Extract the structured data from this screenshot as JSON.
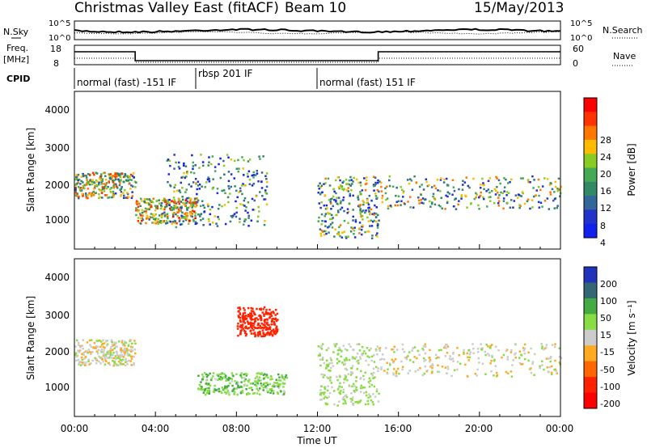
{
  "header": {
    "title": "Christmas Valley East (fitACF)",
    "beam": "Beam 10",
    "date": "15/May/2013"
  },
  "noise_panel": {
    "left_label": "N.Sky",
    "right_label": "N.Search",
    "left_ticks": [
      "10^5",
      "10^0"
    ],
    "right_ticks": [
      "10^5",
      "10^0"
    ]
  },
  "freq_panel": {
    "left_label_line1": "Freq.",
    "left_label_line2": "[MHz]",
    "right_label": "Nave",
    "left_ticks": [
      "18",
      "8"
    ],
    "right_ticks": [
      "60",
      "0"
    ]
  },
  "cpid_panel": {
    "label": "CPID",
    "segments": [
      {
        "label": "normal (fast) -151 IF",
        "start_hour": 0,
        "end_hour": 6
      },
      {
        "label": "rbsp 201 IF",
        "start_hour": 6,
        "end_hour": 12
      },
      {
        "label": "normal (fast) 151 IF",
        "start_hour": 12,
        "end_hour": 24
      }
    ]
  },
  "power_panel": {
    "ylabel": "Slant Range [km]",
    "yticks": [
      "4000",
      "3000",
      "2000",
      "1000"
    ],
    "colorbar_label": "Power [dB]",
    "colorbar_ticks": [
      "28",
      "24",
      "20",
      "16",
      "12",
      "8",
      "4"
    ],
    "colors": [
      "#ff0000",
      "#ff3300",
      "#ff7700",
      "#ffbb00",
      "#88cc22",
      "#44aa55",
      "#338866",
      "#336699",
      "#2233cc",
      "#1122ee"
    ]
  },
  "velocity_panel": {
    "ylabel": "Slant Range [km]",
    "yticks": [
      "4000",
      "3000",
      "2000",
      "1000"
    ],
    "colorbar_label": "Velocity [m s⁻¹]",
    "colorbar_ticks": [
      "200",
      "100",
      "50",
      "15",
      "-15",
      "-50",
      "-100",
      "-200"
    ],
    "colors": [
      "#2233bb",
      "#336677",
      "#44aa44",
      "#88dd44",
      "#cccccc",
      "#ffaa22",
      "#ff6600",
      "#ff2200",
      "#ff0000"
    ]
  },
  "time_axis": {
    "xlabel": "Time UT",
    "ticks": [
      "00:00",
      "04:00",
      "08:00",
      "12:00",
      "16:00",
      "20:00",
      "00:00"
    ]
  },
  "chart_data": {
    "type": "heatmap",
    "title": "Christmas Valley East (fitACF)",
    "subtitle": "Beam 10",
    "date": "15/May/2013",
    "xlabel": "Time UT",
    "xlim_hours": [
      0,
      24
    ],
    "ylim_km": [
      180,
      4500
    ],
    "panels": [
      {
        "name": "Power",
        "units": "dB",
        "ylabel": "Slant Range [km]",
        "colorbar_range": [
          0,
          30
        ],
        "features": [
          {
            "start_hour": 0.0,
            "end_hour": 3.0,
            "range_km": [
              1600,
              2300
            ],
            "peak_value": 26
          },
          {
            "start_hour": 3.0,
            "end_hour": 6.0,
            "range_km": [
              900,
              1600
            ],
            "peak_value": 28
          },
          {
            "start_hour": 4.5,
            "end_hour": 9.5,
            "range_km": [
              800,
              2800
            ],
            "peak_value": 20
          },
          {
            "start_hour": 12.0,
            "end_hour": 15.0,
            "range_km": [
              500,
              2200
            ],
            "peak_value": 22
          },
          {
            "start_hour": 15.0,
            "end_hour": 24.0,
            "range_km": [
              1300,
              2200
            ],
            "peak_value": 24
          }
        ]
      },
      {
        "name": "Velocity",
        "units": "m s^-1",
        "ylabel": "Slant Range [km]",
        "colorbar_range": [
          -250,
          250
        ],
        "features": [
          {
            "start_hour": 0.0,
            "end_hour": 3.0,
            "range_km": [
              1600,
              2300
            ],
            "typical_value": 0
          },
          {
            "start_hour": 6.0,
            "end_hour": 10.5,
            "range_km": [
              800,
              1400
            ],
            "typical_value": 40
          },
          {
            "start_hour": 8.0,
            "end_hour": 10.0,
            "range_km": [
              2400,
              3200
            ],
            "typical_value": -150
          },
          {
            "start_hour": 12.0,
            "end_hour": 15.0,
            "range_km": [
              500,
              2200
            ],
            "typical_value": 20
          },
          {
            "start_hour": 15.0,
            "end_hour": 24.0,
            "range_km": [
              1300,
              2200
            ],
            "typical_value": 0
          }
        ]
      }
    ]
  }
}
